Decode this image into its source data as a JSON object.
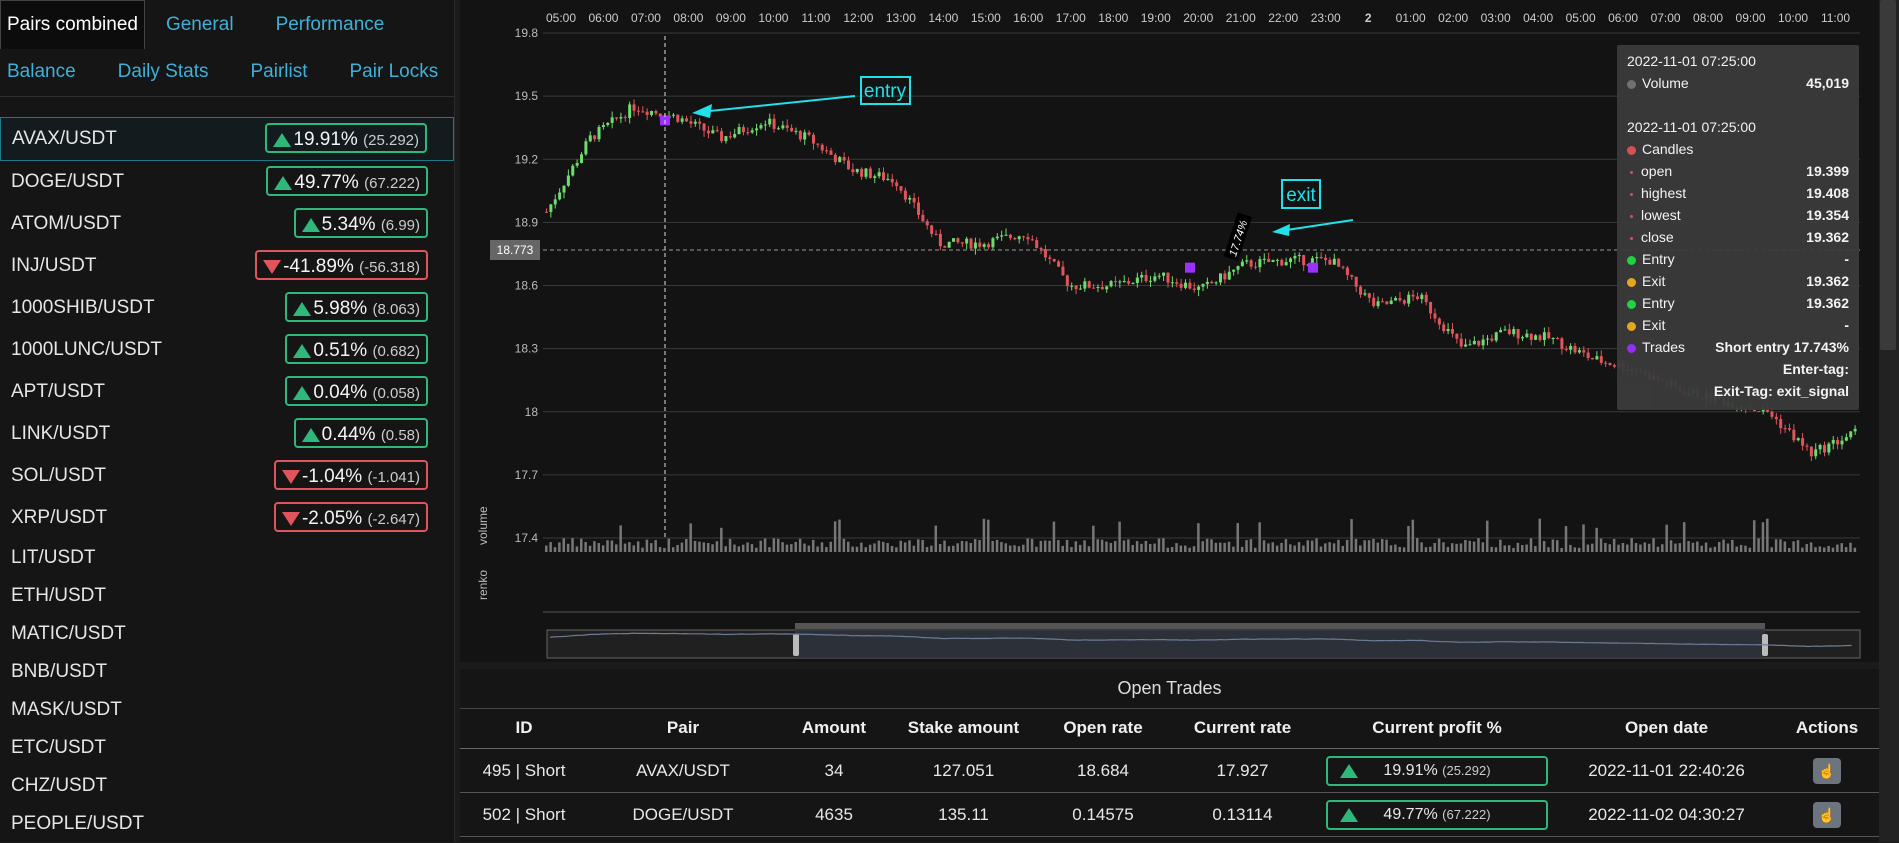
{
  "tabs_row1": [
    {
      "label": "Pairs combined",
      "active": true
    },
    {
      "label": "General",
      "active": false
    },
    {
      "label": "Performance",
      "active": false
    }
  ],
  "tabs_row2": [
    {
      "label": "Balance"
    },
    {
      "label": "Daily Stats"
    },
    {
      "label": "Pairlist"
    },
    {
      "label": "Pair Locks"
    }
  ],
  "pairs": [
    {
      "name": "AVAX/USDT",
      "profit": "19.91%",
      "abs": "(25.292)",
      "dir": "up",
      "selected": true
    },
    {
      "name": "DOGE/USDT",
      "profit": "49.77%",
      "abs": "(67.222)",
      "dir": "up"
    },
    {
      "name": "ATOM/USDT",
      "profit": "5.34%",
      "abs": "(6.99)",
      "dir": "up"
    },
    {
      "name": "INJ/USDT",
      "profit": "-41.89%",
      "abs": "(-56.318)",
      "dir": "down"
    },
    {
      "name": "1000SHIB/USDT",
      "profit": "5.98%",
      "abs": "(8.063)",
      "dir": "up"
    },
    {
      "name": "1000LUNC/USDT",
      "profit": "0.51%",
      "abs": "(0.682)",
      "dir": "up"
    },
    {
      "name": "APT/USDT",
      "profit": "0.04%",
      "abs": "(0.058)",
      "dir": "up"
    },
    {
      "name": "LINK/USDT",
      "profit": "0.44%",
      "abs": "(0.58)",
      "dir": "up"
    },
    {
      "name": "SOL/USDT",
      "profit": "-1.04%",
      "abs": "(-1.041)",
      "dir": "down"
    },
    {
      "name": "XRP/USDT",
      "profit": "-2.05%",
      "abs": "(-2.647)",
      "dir": "down"
    }
  ],
  "plain_pairs": [
    "LIT/USDT",
    "ETH/USDT",
    "MATIC/USDT",
    "BNB/USDT",
    "MASK/USDT",
    "ETC/USDT",
    "CHZ/USDT",
    "PEOPLE/USDT"
  ],
  "chart": {
    "time_labels": [
      "05:00",
      "06:00",
      "07:00",
      "08:00",
      "09:00",
      "10:00",
      "11:00",
      "12:00",
      "13:00",
      "14:00",
      "15:00",
      "16:00",
      "17:00",
      "18:00",
      "19:00",
      "20:00",
      "21:00",
      "22:00",
      "23:00",
      "2",
      "01:00",
      "02:00",
      "03:00",
      "04:00",
      "05:00",
      "06:00",
      "07:00",
      "08:00",
      "09:00",
      "10:00",
      "11:00"
    ],
    "y_ticks": [
      "19.8",
      "19.5",
      "19.2",
      "18.9",
      "18.6",
      "18.3",
      "18",
      "17.7",
      "17.4"
    ],
    "crosshair_value": "18.773",
    "annotation_entry": "entry",
    "annotation_exit": "exit",
    "trade_label": "17.74%",
    "axis_volume": "volume",
    "axis_renko": "renko"
  },
  "chart_data": {
    "type": "candlestick",
    "y_range": [
      17.4,
      19.8
    ],
    "x_labels": [
      "05:00",
      "06:00",
      "07:00",
      "08:00",
      "09:00",
      "10:00",
      "11:00",
      "12:00",
      "13:00",
      "14:00",
      "15:00",
      "16:00",
      "17:00",
      "18:00",
      "19:00",
      "20:00",
      "21:00",
      "22:00",
      "23:00",
      "2",
      "01:00",
      "02:00",
      "03:00",
      "04:00",
      "05:00",
      "06:00",
      "07:00",
      "08:00",
      "09:00",
      "10:00",
      "11:00"
    ],
    "close_by_hour": [
      18.95,
      19.3,
      19.45,
      19.4,
      19.3,
      19.38,
      19.3,
      19.15,
      19.1,
      18.8,
      18.8,
      18.85,
      18.6,
      18.6,
      18.65,
      18.58,
      18.7,
      18.72,
      18.72,
      18.5,
      18.55,
      18.3,
      18.38,
      18.35,
      18.25,
      18.2,
      18.1,
      18.05,
      18.0,
      17.8,
      17.9
    ]
  },
  "tooltip": {
    "vol_time": "2022-11-01 07:25:00",
    "vol_label": "Volume",
    "vol_value": "45,019",
    "candle_time": "2022-11-01 07:25:00",
    "candles_label": "Candles",
    "open_label": "open",
    "open": "19.399",
    "high_label": "highest",
    "high": "19.408",
    "low_label": "lowest",
    "low": "19.354",
    "close_label": "close",
    "close": "19.362",
    "entry1_label": "Entry",
    "entry1": "-",
    "exit1_label": "Exit",
    "exit1": "19.362",
    "entry2_label": "Entry",
    "entry2": "19.362",
    "exit2_label": "Exit",
    "exit2": "-",
    "trades_label": "Trades",
    "trades_value": "Short entry  17.743%",
    "enter_tag": "Enter-tag:",
    "exit_tag": "Exit-Tag: exit_signal"
  },
  "open_trades": {
    "title": "Open Trades",
    "headers": [
      "ID",
      "Pair",
      "Amount",
      "Stake amount",
      "Open rate",
      "Current rate",
      "Current profit %",
      "Open date",
      "Actions"
    ],
    "rows": [
      {
        "id": "495 | Short",
        "pair": "AVAX/USDT",
        "amount": "34",
        "stake": "127.051",
        "open_rate": "18.684",
        "current_rate": "17.927",
        "profit": "19.91%",
        "profit_abs": "(25.292)",
        "open_date": "2022-11-01 22:40:26"
      },
      {
        "id": "502 | Short",
        "pair": "DOGE/USDT",
        "amount": "4635",
        "stake": "135.11",
        "open_rate": "0.14575",
        "current_rate": "0.13114",
        "profit": "49.77%",
        "profit_abs": "(67.222)",
        "open_date": "2022-11-02 04:30:27"
      }
    ]
  },
  "colors": {
    "accent": "#3fb0d8",
    "up": "#2eb87a",
    "down": "#e0555c",
    "entry_mark": "#22e0e8",
    "trade": "#9b30ff"
  }
}
